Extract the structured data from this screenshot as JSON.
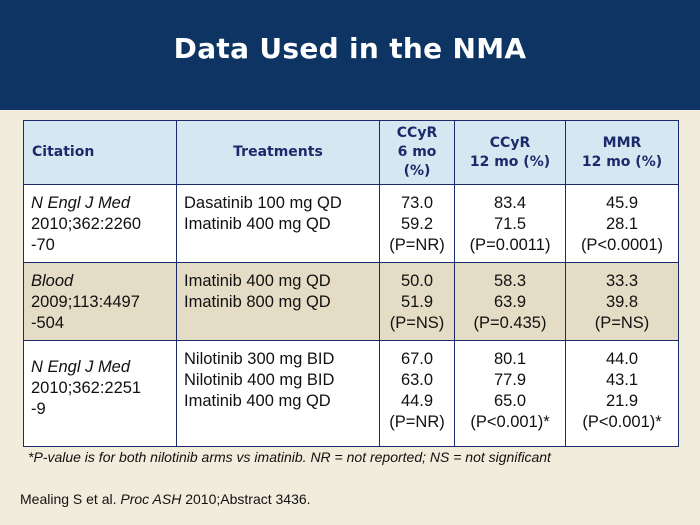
{
  "slide": {
    "title": "Data Used in the NMA"
  },
  "table": {
    "headers": [
      [
        "Citation"
      ],
      [
        "Treatments"
      ],
      [
        "CCyR",
        "6 mo",
        "(%)"
      ],
      [
        "CCyR",
        "12 mo (%)"
      ],
      [
        "MMR",
        "12 mo (%)"
      ]
    ],
    "rows": [
      {
        "citation": [
          "N Engl J Med",
          "2010;362:2260",
          "-70"
        ],
        "treatments": [
          "Dasatinib 100 mg QD",
          "Imatinib 400 mg QD"
        ],
        "ccyr6": [
          "73.0",
          "59.2",
          "(P=NR)"
        ],
        "ccyr12": [
          "83.4",
          "71.5",
          "(P=0.0011)"
        ],
        "mmr12": [
          "45.9",
          "28.1",
          "(P<0.0001)"
        ]
      },
      {
        "citation": [
          "Blood",
          "2009;113:4497",
          "-504"
        ],
        "treatments": [
          "Imatinib 400 mg QD",
          "Imatinib 800 mg QD"
        ],
        "ccyr6": [
          "50.0",
          "51.9",
          "(P=NS)"
        ],
        "ccyr12": [
          "58.3",
          "63.9",
          "(P=0.435)"
        ],
        "mmr12": [
          "33.3",
          "39.8",
          "(P=NS)"
        ]
      },
      {
        "citation": [
          "N Engl J Med",
          "2010;362:2251",
          "-9"
        ],
        "treatments": [
          "Nilotinib 300 mg BID",
          "Nilotinib 400 mg BID",
          "Imatinib 400 mg QD"
        ],
        "ccyr6": [
          "67.0",
          "63.0",
          "44.9",
          "(P=NR)"
        ],
        "ccyr12": [
          "80.1",
          "77.9",
          "65.0",
          "(P<0.001)*"
        ],
        "mmr12": [
          "44.0",
          "43.1",
          "21.9",
          "(P<0.001)*"
        ]
      }
    ]
  },
  "footnote": "*P-value is for both nilotinib arms vs imatinib. NR = not reported; NS = not significant",
  "reference": {
    "prefix": "Mealing S et al. ",
    "journal": "Proc ASH",
    "suffix": " 2010;Abstract 3436."
  },
  "colors": {
    "header_band": "#0d3462",
    "background": "#f2ecdc",
    "table_header": "#d5e8f2",
    "shaded_row": "#e5dcc5",
    "border": "#1a2b6b"
  }
}
